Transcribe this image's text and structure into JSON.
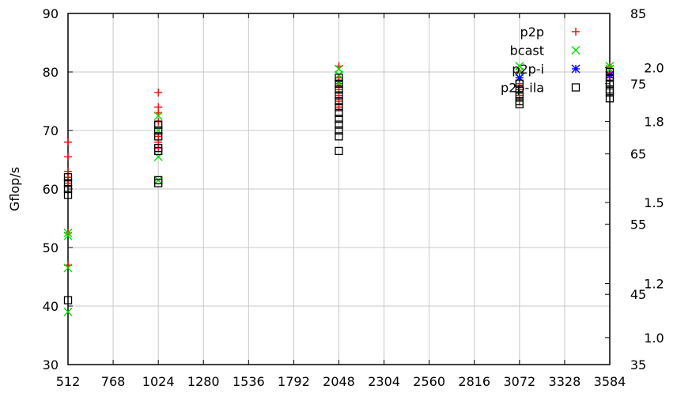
{
  "chart_data": {
    "type": "scatter",
    "xlabel": "",
    "ylabel": "Gflop/s",
    "xlim": [
      512,
      3584
    ],
    "ylim": [
      30,
      90
    ],
    "x_ticks": [
      512,
      768,
      1024,
      1280,
      1536,
      1792,
      2048,
      2304,
      2560,
      2816,
      3072,
      3328,
      3584
    ],
    "y_ticks": [
      30,
      40,
      50,
      60,
      70,
      80,
      90
    ],
    "right_axis_outer_ticks": [
      "85",
      "75",
      "65",
      "55",
      "45",
      "35"
    ],
    "right_axis_outer_values": [
      85,
      75,
      65,
      55,
      45,
      35
    ],
    "right_axis_inner_ticks": [
      "2.0",
      "1.8",
      "1.5",
      "1.2",
      "1.0"
    ],
    "right_axis_inner_values": [
      2.0,
      1.8,
      1.5,
      1.2,
      1.0
    ],
    "right_axis_inner_lim": [
      0.9,
      2.2
    ],
    "grid": true,
    "legend_position": "top-right",
    "series": [
      {
        "name": "p2p",
        "marker": "plus",
        "color": "#ff0000",
        "points": [
          [
            512,
            68
          ],
          [
            512,
            65.5
          ],
          [
            512,
            63
          ],
          [
            512,
            62
          ],
          [
            512,
            61
          ],
          [
            512,
            52.5
          ],
          [
            512,
            47
          ],
          [
            1024,
            76.5
          ],
          [
            1024,
            74
          ],
          [
            1024,
            73
          ],
          [
            1024,
            71.5
          ],
          [
            1024,
            69
          ],
          [
            1024,
            68
          ],
          [
            1024,
            67
          ],
          [
            2048,
            81
          ],
          [
            2048,
            79
          ],
          [
            2048,
            78
          ],
          [
            2048,
            77
          ],
          [
            2048,
            76
          ],
          [
            2048,
            75
          ],
          [
            2048,
            74
          ],
          [
            3072,
            80
          ],
          [
            3072,
            79
          ],
          [
            3072,
            78
          ],
          [
            3072,
            77
          ],
          [
            3072,
            76
          ],
          [
            3072,
            75
          ],
          [
            3584,
            81
          ],
          [
            3584,
            80
          ],
          [
            3584,
            79
          ]
        ]
      },
      {
        "name": "bcast",
        "marker": "cross",
        "color": "#00dd00",
        "points": [
          [
            512,
            52.5
          ],
          [
            512,
            52
          ],
          [
            512,
            46.5
          ],
          [
            512,
            39
          ],
          [
            1024,
            72.5
          ],
          [
            1024,
            70
          ],
          [
            1024,
            65.5
          ],
          [
            1024,
            61.5
          ],
          [
            2048,
            80.5
          ],
          [
            2048,
            79.5
          ],
          [
            2048,
            78
          ],
          [
            3072,
            81
          ],
          [
            3072,
            80
          ],
          [
            3072,
            79
          ],
          [
            3584,
            81
          ],
          [
            3584,
            80.5
          ]
        ]
      },
      {
        "name": "p2p-i",
        "marker": "star",
        "color": "#0000ff",
        "points": [
          [
            3072,
            79
          ],
          [
            3584,
            79.5
          ]
        ]
      },
      {
        "name": "p2p-ila",
        "marker": "square",
        "color": "#000000",
        "points": [
          [
            512,
            62
          ],
          [
            512,
            61
          ],
          [
            512,
            60
          ],
          [
            512,
            59
          ],
          [
            512,
            41
          ],
          [
            1024,
            71
          ],
          [
            1024,
            70
          ],
          [
            1024,
            69
          ],
          [
            1024,
            67
          ],
          [
            1024,
            66.5
          ],
          [
            1024,
            61.5
          ],
          [
            1024,
            61
          ],
          [
            2048,
            79
          ],
          [
            2048,
            78
          ],
          [
            2048,
            77
          ],
          [
            2048,
            76
          ],
          [
            2048,
            75
          ],
          [
            2048,
            74
          ],
          [
            2048,
            73
          ],
          [
            2048,
            72
          ],
          [
            2048,
            71
          ],
          [
            2048,
            70
          ],
          [
            2048,
            69
          ],
          [
            2048,
            66.5
          ],
          [
            3072,
            78
          ],
          [
            3072,
            77
          ],
          [
            3072,
            76
          ],
          [
            3072,
            75
          ],
          [
            3072,
            74.5
          ],
          [
            3584,
            80
          ],
          [
            3584,
            79
          ],
          [
            3584,
            78
          ],
          [
            3584,
            77
          ],
          [
            3584,
            76.5
          ],
          [
            3584,
            75.5
          ]
        ]
      }
    ]
  }
}
